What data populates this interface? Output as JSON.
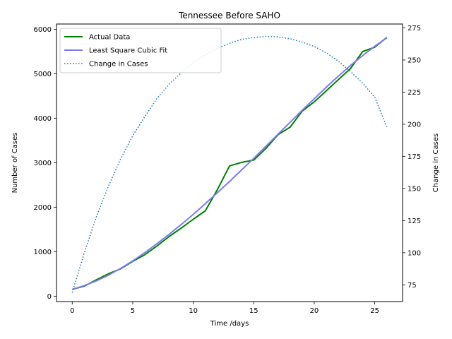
{
  "chart_data": {
    "type": "line",
    "title": "Tennessee Before SAHO",
    "xlabel": "Time /days",
    "ylabel": "Number of Cases",
    "y2label": "Change in Cases",
    "xlim": [
      -1.3,
      27.3
    ],
    "ylim": [
      -120,
      6120
    ],
    "y2lim": [
      62,
      278
    ],
    "xticks": [
      0,
      5,
      10,
      15,
      20,
      25
    ],
    "yticks": [
      0,
      1000,
      2000,
      3000,
      4000,
      5000,
      6000
    ],
    "y2ticks": [
      75,
      100,
      125,
      150,
      175,
      200,
      225,
      250,
      275
    ],
    "legend_position": "upper left",
    "x": [
      0,
      1,
      2,
      3,
      4,
      5,
      6,
      7,
      8,
      9,
      10,
      11,
      12,
      13,
      14,
      15,
      16,
      17,
      18,
      19,
      20,
      21,
      22,
      23,
      24,
      25,
      26
    ],
    "series": [
      {
        "name": "Actual Data",
        "axis": "left",
        "color": "#008000",
        "style": "solid",
        "values": [
          154,
          228,
          370,
          505,
          615,
          784,
          935,
          1130,
          1340,
          1530,
          1730,
          1920,
          2400,
          2930,
          3010,
          3060,
          3320,
          3630,
          3800,
          4160,
          4370,
          4620,
          4870,
          5120,
          5500,
          5600,
          5820
        ]
      },
      {
        "name": "Least Square Cubic Fit",
        "axis": "left",
        "color": "#7b7bf0",
        "style": "solid",
        "values": [
          150,
          240,
          345,
          475,
          625,
          795,
          980,
          1180,
          1390,
          1610,
          1840,
          2080,
          2330,
          2580,
          2840,
          3100,
          3370,
          3640,
          3910,
          4180,
          4440,
          4700,
          4950,
          5190,
          5410,
          5620,
          5810
        ]
      },
      {
        "name": "Change in Cases",
        "axis": "right",
        "color": "#1f77b4",
        "style": "dotted",
        "values": [
          69,
          100,
          128,
          152,
          173,
          191,
          206,
          220,
          231,
          240,
          248,
          254,
          259,
          263,
          266,
          267.5,
          268.3,
          268,
          266.5,
          264,
          260.5,
          255.5,
          249,
          241,
          232,
          221,
          198
        ]
      }
    ]
  }
}
